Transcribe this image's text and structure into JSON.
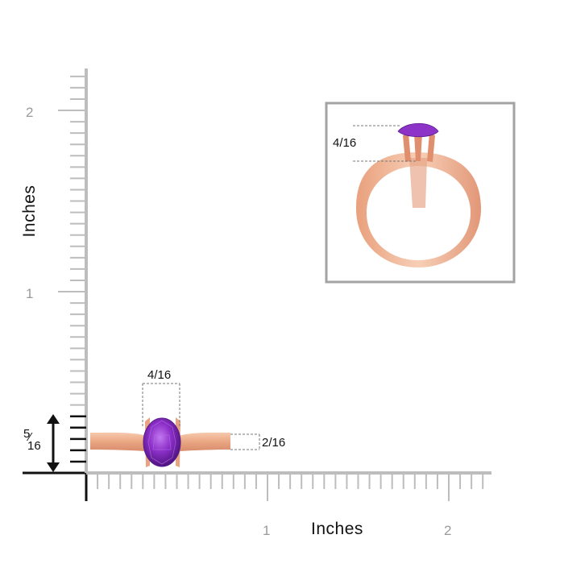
{
  "axes": {
    "x_title": "Inches",
    "y_title": "Inches",
    "x_ticks": [
      "1",
      "2"
    ],
    "y_ticks": [
      "2",
      "1"
    ]
  },
  "measurements": {
    "top_width": "4/16",
    "band_width": "2/16",
    "height_numerator": "5",
    "height_denominator": "16",
    "inset_height": "4/16"
  },
  "colors": {
    "gold": "#f0b493",
    "gold_dark": "#d98d6c",
    "amethyst": "#8b2fc4",
    "axis": "#bdbdbd",
    "inset_border": "#a3a3a3"
  }
}
